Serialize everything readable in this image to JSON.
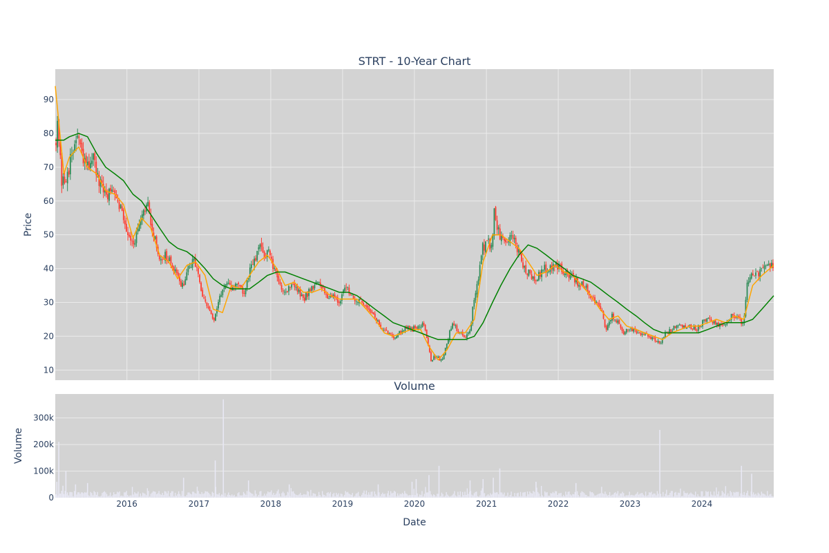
{
  "colors": {
    "plot_bg": "#d3d3d3",
    "grid": "#ebebeb",
    "up": "#2e8b57",
    "down": "#ff3b30",
    "ma_short": "#ffa500",
    "ma_long": "#008000",
    "volume": "#e8e8f4",
    "text": "#2a3f5f"
  },
  "chart_data": [
    {
      "type": "candlestick",
      "title": "STRT - 10-Year Chart",
      "ylabel": "Price",
      "ylim": [
        7,
        99
      ],
      "yticks": [
        10,
        20,
        30,
        40,
        50,
        60,
        70,
        80,
        90
      ],
      "xlim": [
        "2015-01-02",
        "2024-12-31"
      ],
      "grid": true,
      "price_path": [
        [
          "2015-01-02",
          78
        ],
        [
          "2015-01-15",
          82
        ],
        [
          "2015-02-05",
          64
        ],
        [
          "2015-03-01",
          68
        ],
        [
          "2015-04-01",
          74
        ],
        [
          "2015-04-25",
          80
        ],
        [
          "2015-05-20",
          72
        ],
        [
          "2015-06-15",
          70
        ],
        [
          "2015-07-10",
          74
        ],
        [
          "2015-08-05",
          66
        ],
        [
          "2015-09-01",
          63
        ],
        [
          "2015-10-01",
          62
        ],
        [
          "2015-11-01",
          64
        ],
        [
          "2015-12-01",
          58
        ],
        [
          "2016-01-10",
          50
        ],
        [
          "2016-02-10",
          48
        ],
        [
          "2016-03-15",
          54
        ],
        [
          "2016-04-15",
          59
        ],
        [
          "2016-05-15",
          50
        ],
        [
          "2016-06-15",
          43
        ],
        [
          "2016-07-15",
          44
        ],
        [
          "2016-08-15",
          41
        ],
        [
          "2016-09-15",
          37
        ],
        [
          "2016-10-15",
          35
        ],
        [
          "2016-11-15",
          41
        ],
        [
          "2016-12-15",
          42
        ],
        [
          "2017-01-20",
          31
        ],
        [
          "2017-03-01",
          27
        ],
        [
          "2017-03-20",
          24
        ],
        [
          "2017-04-20",
          33
        ],
        [
          "2017-05-20",
          35
        ],
        [
          "2017-06-20",
          34
        ],
        [
          "2017-07-20",
          36
        ],
        [
          "2017-08-20",
          32
        ],
        [
          "2017-09-20",
          40
        ],
        [
          "2017-10-20",
          43
        ],
        [
          "2017-11-05",
          47
        ],
        [
          "2017-11-25",
          44
        ],
        [
          "2017-12-20",
          45
        ],
        [
          "2018-01-20",
          39
        ],
        [
          "2018-02-20",
          35
        ],
        [
          "2018-03-20",
          33
        ],
        [
          "2018-04-20",
          36
        ],
        [
          "2018-05-20",
          33
        ],
        [
          "2018-06-20",
          31
        ],
        [
          "2018-07-20",
          34
        ],
        [
          "2018-08-20",
          36
        ],
        [
          "2018-09-20",
          34
        ],
        [
          "2018-10-20",
          32
        ],
        [
          "2018-11-20",
          32
        ],
        [
          "2018-12-20",
          30
        ],
        [
          "2019-01-20",
          35
        ],
        [
          "2019-02-20",
          32
        ],
        [
          "2019-03-20",
          30
        ],
        [
          "2019-04-20",
          30
        ],
        [
          "2019-05-20",
          28
        ],
        [
          "2019-06-20",
          25
        ],
        [
          "2019-07-20",
          22
        ],
        [
          "2019-08-20",
          21
        ],
        [
          "2019-09-20",
          20
        ],
        [
          "2019-10-20",
          21
        ],
        [
          "2019-11-20",
          23
        ],
        [
          "2019-12-20",
          22
        ],
        [
          "2020-01-20",
          23
        ],
        [
          "2020-02-15",
          24
        ],
        [
          "2020-03-10",
          18
        ],
        [
          "2020-03-25",
          13
        ],
        [
          "2020-04-20",
          14
        ],
        [
          "2020-05-20",
          13
        ],
        [
          "2020-06-20",
          19
        ],
        [
          "2020-07-10",
          24
        ],
        [
          "2020-08-20",
          21
        ],
        [
          "2020-09-20",
          20
        ],
        [
          "2020-10-10",
          22
        ],
        [
          "2020-10-25",
          29
        ],
        [
          "2020-11-20",
          36
        ],
        [
          "2020-12-10",
          46
        ],
        [
          "2021-01-10",
          48
        ],
        [
          "2021-01-30",
          45
        ],
        [
          "2021-02-10",
          58
        ],
        [
          "2021-02-25",
          52
        ],
        [
          "2021-03-15",
          49
        ],
        [
          "2021-04-15",
          47
        ],
        [
          "2021-05-15",
          50
        ],
        [
          "2021-06-15",
          44
        ],
        [
          "2021-07-15",
          40
        ],
        [
          "2021-08-15",
          38
        ],
        [
          "2021-09-15",
          37
        ],
        [
          "2021-10-15",
          40
        ],
        [
          "2021-11-15",
          40
        ],
        [
          "2021-12-15",
          42
        ],
        [
          "2022-01-15",
          40
        ],
        [
          "2022-02-15",
          38
        ],
        [
          "2022-03-15",
          38
        ],
        [
          "2022-04-15",
          35
        ],
        [
          "2022-05-15",
          35
        ],
        [
          "2022-06-15",
          32
        ],
        [
          "2022-07-15",
          30
        ],
        [
          "2022-08-15",
          26
        ],
        [
          "2022-09-01",
          22
        ],
        [
          "2022-10-01",
          26
        ],
        [
          "2022-11-01",
          24
        ],
        [
          "2022-12-01",
          21
        ],
        [
          "2023-01-01",
          22
        ],
        [
          "2023-02-01",
          21
        ],
        [
          "2023-03-01",
          21
        ],
        [
          "2023-04-01",
          20
        ],
        [
          "2023-05-01",
          19
        ],
        [
          "2023-06-01",
          18
        ],
        [
          "2023-07-01",
          21
        ],
        [
          "2023-08-01",
          22
        ],
        [
          "2023-09-01",
          23
        ],
        [
          "2023-10-01",
          23
        ],
        [
          "2023-11-01",
          23
        ],
        [
          "2023-12-01",
          22
        ],
        [
          "2024-01-01",
          24
        ],
        [
          "2024-02-01",
          26
        ],
        [
          "2024-03-01",
          24
        ],
        [
          "2024-04-01",
          23
        ],
        [
          "2024-05-01",
          24
        ],
        [
          "2024-06-01",
          26
        ],
        [
          "2024-07-01",
          25
        ],
        [
          "2024-08-01",
          24
        ],
        [
          "2024-08-20",
          37
        ],
        [
          "2024-09-15",
          38
        ],
        [
          "2024-10-15",
          38
        ],
        [
          "2024-11-15",
          41
        ],
        [
          "2024-12-31",
          41
        ]
      ],
      "series": [
        {
          "type": "line",
          "x": [
            "2015-01-02",
            "2015-02-15",
            "2015-03-15",
            "2015-05-01",
            "2015-06-15",
            "2015-08-01",
            "2015-09-15",
            "2015-11-01",
            "2015-12-15",
            "2016-02-01",
            "2016-03-15",
            "2016-05-01",
            "2016-06-15",
            "2016-08-01",
            "2016-09-15",
            "2016-11-01",
            "2016-12-15",
            "2017-02-01",
            "2017-03-15",
            "2017-05-01",
            "2017-06-15",
            "2017-08-01",
            "2017-09-15",
            "2017-11-01",
            "2017-12-15",
            "2018-02-01",
            "2018-03-15",
            "2018-05-01",
            "2018-06-15",
            "2018-08-01",
            "2018-09-15",
            "2018-11-01",
            "2018-12-15",
            "2019-02-01",
            "2019-03-15",
            "2019-05-01",
            "2019-06-15",
            "2019-08-01",
            "2019-09-15",
            "2019-11-01",
            "2019-12-15",
            "2020-02-01",
            "2020-03-15",
            "2020-05-01",
            "2020-06-15",
            "2020-08-01",
            "2020-09-15",
            "2020-11-01",
            "2020-12-15",
            "2021-02-01",
            "2021-03-15",
            "2021-05-01",
            "2021-06-15",
            "2021-08-01",
            "2021-09-15",
            "2021-11-01",
            "2021-12-15",
            "2022-02-01",
            "2022-03-15",
            "2022-05-01",
            "2022-06-15",
            "2022-08-01",
            "2022-09-15",
            "2022-11-01",
            "2022-12-15",
            "2023-02-01",
            "2023-03-15",
            "2023-05-01",
            "2023-06-15",
            "2023-08-01",
            "2023-09-15",
            "2023-11-01",
            "2023-12-15",
            "2024-02-01",
            "2024-03-15",
            "2024-05-01",
            "2024-06-15",
            "2024-08-01",
            "2024-09-15",
            "2024-11-01",
            "2024-12-31"
          ],
          "values": [
            94,
            68,
            73,
            76,
            70,
            68,
            63,
            62,
            59,
            49,
            55,
            52,
            44,
            42,
            37,
            41,
            42,
            38,
            28,
            27,
            35,
            34,
            38,
            42,
            44,
            40,
            35,
            36,
            33,
            33,
            34,
            32,
            31,
            31,
            31,
            28,
            25,
            21,
            20,
            21,
            22,
            22,
            17,
            13,
            16,
            21,
            21,
            25,
            42,
            50,
            50,
            48,
            46,
            42,
            38,
            39,
            41,
            39,
            38,
            35,
            32,
            28,
            25,
            26,
            23,
            22,
            21,
            20,
            19,
            21,
            22,
            23,
            23,
            24,
            25,
            24,
            26,
            25,
            35,
            38,
            41
          ]
        },
        {
          "type": "line",
          "x": [
            "2015-01-02",
            "2015-02-15",
            "2015-03-15",
            "2015-05-01",
            "2015-06-15",
            "2015-08-01",
            "2015-09-15",
            "2015-11-01",
            "2015-12-15",
            "2016-02-01",
            "2016-03-15",
            "2016-05-01",
            "2016-06-15",
            "2016-08-01",
            "2016-09-15",
            "2016-11-01",
            "2016-12-15",
            "2017-02-01",
            "2017-03-15",
            "2017-05-01",
            "2017-06-15",
            "2017-08-01",
            "2017-09-15",
            "2017-11-01",
            "2017-12-15",
            "2018-02-01",
            "2018-03-15",
            "2018-05-01",
            "2018-06-15",
            "2018-08-01",
            "2018-09-15",
            "2018-11-01",
            "2018-12-15",
            "2019-02-01",
            "2019-03-15",
            "2019-05-01",
            "2019-06-15",
            "2019-08-01",
            "2019-09-15",
            "2019-11-01",
            "2019-12-15",
            "2020-02-01",
            "2020-03-15",
            "2020-05-01",
            "2020-06-15",
            "2020-08-01",
            "2020-09-15",
            "2020-11-01",
            "2020-12-15",
            "2021-02-01",
            "2021-03-15",
            "2021-05-01",
            "2021-06-15",
            "2021-08-01",
            "2021-09-15",
            "2021-11-01",
            "2021-12-15",
            "2022-02-01",
            "2022-03-15",
            "2022-05-01",
            "2022-06-15",
            "2022-08-01",
            "2022-09-15",
            "2022-11-01",
            "2022-12-15",
            "2023-02-01",
            "2023-03-15",
            "2023-05-01",
            "2023-06-15",
            "2023-08-01",
            "2023-09-15",
            "2023-11-01",
            "2023-12-15",
            "2024-02-01",
            "2024-03-15",
            "2024-05-01",
            "2024-06-15",
            "2024-08-01",
            "2024-09-15",
            "2024-11-01",
            "2024-12-31"
          ],
          "values": [
            78,
            78,
            79,
            80,
            79,
            74,
            70,
            68,
            66,
            62,
            60,
            56,
            52,
            48,
            46,
            45,
            43,
            40,
            37,
            35,
            34,
            34,
            34,
            36,
            38,
            39,
            39,
            38,
            37,
            36,
            35,
            34,
            33,
            33,
            32,
            30,
            28,
            26,
            24,
            23,
            22,
            21,
            20,
            19,
            19,
            19,
            19,
            20,
            24,
            30,
            35,
            40,
            44,
            47,
            46,
            44,
            42,
            40,
            38,
            37,
            36,
            34,
            32,
            30,
            28,
            26,
            24,
            22,
            21,
            21,
            21,
            21,
            21,
            22,
            23,
            24,
            24,
            24,
            25,
            28,
            32
          ]
        }
      ]
    },
    {
      "type": "bar",
      "title": "Volume",
      "xlabel": "Date",
      "ylabel": "Volume",
      "ylim": [
        0,
        390000
      ],
      "yticks": [
        0,
        100000,
        200000,
        300000
      ],
      "ytick_labels": [
        "0",
        "100k",
        "200k",
        "300k"
      ],
      "xticks": [
        "2016-01-01",
        "2017-01-01",
        "2018-01-01",
        "2019-01-01",
        "2020-01-01",
        "2021-01-01",
        "2022-01-01",
        "2023-01-01",
        "2024-01-01"
      ],
      "xtick_labels": [
        "2016",
        "2017",
        "2018",
        "2019",
        "2020",
        "2021",
        "2022",
        "2023",
        "2024"
      ],
      "spikes": [
        [
          "2015-01-10",
          60000
        ],
        [
          "2015-01-20",
          210000
        ],
        [
          "2015-02-10",
          45000
        ],
        [
          "2015-02-25",
          100000
        ],
        [
          "2015-04-15",
          50000
        ],
        [
          "2015-06-15",
          55000
        ],
        [
          "2016-10-15",
          75000
        ],
        [
          "2017-03-25",
          140000
        ],
        [
          "2017-05-05",
          370000
        ],
        [
          "2017-09-10",
          65000
        ],
        [
          "2018-04-05",
          50000
        ],
        [
          "2019-07-01",
          50000
        ],
        [
          "2019-12-20",
          60000
        ],
        [
          "2020-01-10",
          70000
        ],
        [
          "2020-03-15",
          85000
        ],
        [
          "2020-05-05",
          120000
        ],
        [
          "2020-10-10",
          65000
        ],
        [
          "2020-12-15",
          70000
        ],
        [
          "2021-02-05",
          75000
        ],
        [
          "2021-03-10",
          110000
        ],
        [
          "2021-09-10",
          60000
        ],
        [
          "2022-04-01",
          55000
        ],
        [
          "2023-06-01",
          255000
        ],
        [
          "2024-07-20",
          120000
        ],
        [
          "2024-09-10",
          90000
        ]
      ]
    }
  ]
}
